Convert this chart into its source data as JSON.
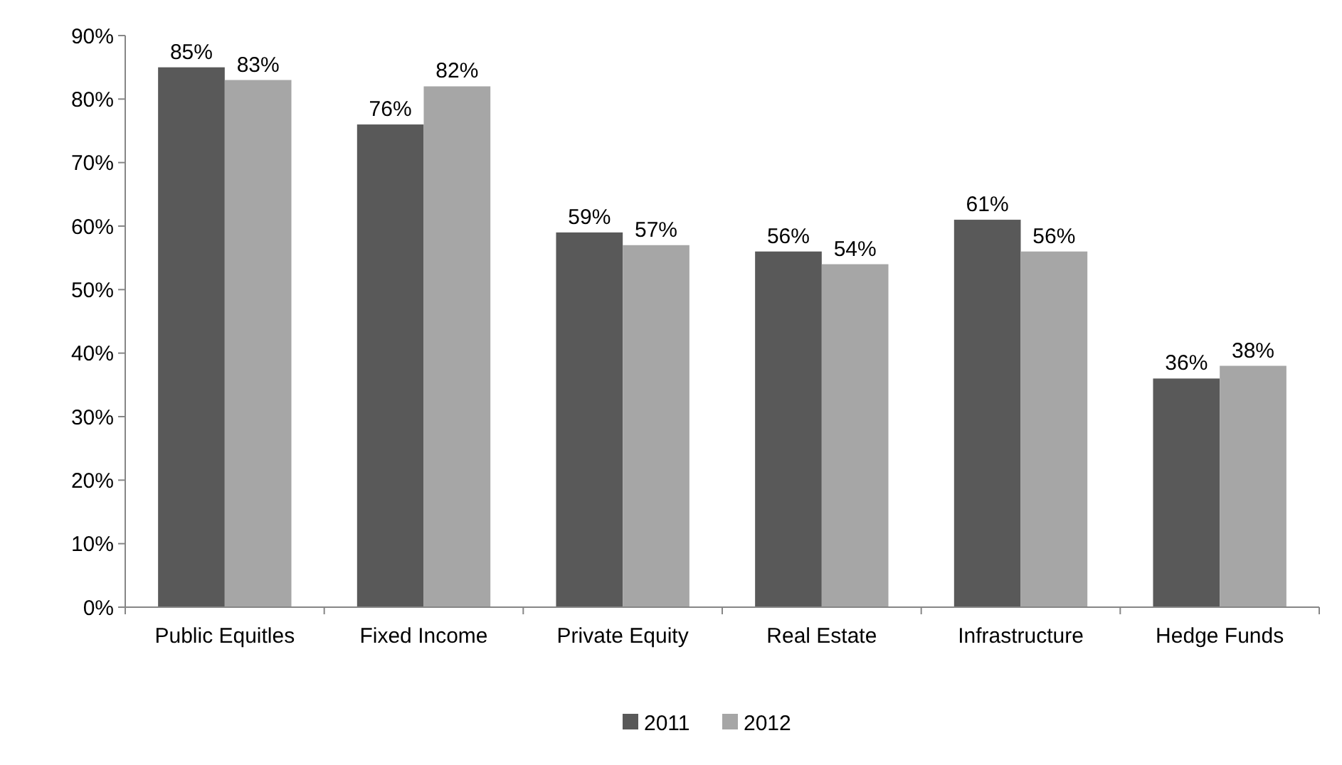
{
  "chart_data": {
    "type": "bar",
    "categories": [
      "Public Equitles",
      "Fixed Income",
      "Private Equity",
      "Real Estate",
      "Infrastructure",
      "Hedge Funds"
    ],
    "series": [
      {
        "name": "2011",
        "color": "#595959",
        "values": [
          85,
          76,
          59,
          56,
          61,
          36
        ],
        "value_labels": [
          "85%",
          "76%",
          "59%",
          "56%",
          "61%",
          "36%"
        ]
      },
      {
        "name": "2012",
        "color": "#a6a6a6",
        "values": [
          83,
          82,
          57,
          54,
          56,
          38
        ],
        "value_labels": [
          "83%",
          "82%",
          "57%",
          "54%",
          "56%",
          "38%"
        ]
      }
    ],
    "ylim": [
      0,
      90
    ],
    "yticks": [
      {
        "value": 0,
        "label": "0%"
      },
      {
        "value": 10,
        "label": "10%"
      },
      {
        "value": 20,
        "label": "20%"
      },
      {
        "value": 30,
        "label": "30%"
      },
      {
        "value": 40,
        "label": "40%"
      },
      {
        "value": 50,
        "label": "50%"
      },
      {
        "value": 60,
        "label": "60%"
      },
      {
        "value": 70,
        "label": "70%"
      },
      {
        "value": 80,
        "label": "80%"
      },
      {
        "value": 90,
        "label": "90%"
      }
    ],
    "grid": false,
    "legend": "bottom"
  }
}
